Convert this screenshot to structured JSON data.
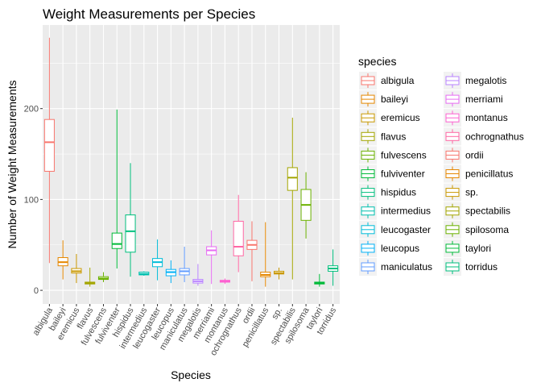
{
  "chart_data": {
    "type": "box",
    "title": "Weight Measurements per Species",
    "xlabel": "Species",
    "ylabel": "Number of Weight Measurements",
    "ylim": [
      -15,
      292
    ],
    "yticks": [
      0,
      100,
      200
    ],
    "grid": true,
    "legend": {
      "title": "species",
      "position": "right",
      "columns": 2
    },
    "series": [
      {
        "name": "albigula",
        "color": "#F8766D",
        "min": 30,
        "q1": 131,
        "median": 163,
        "q3": 188,
        "max": 278
      },
      {
        "name": "baileyi",
        "color": "#E58700",
        "min": 12,
        "q1": 27,
        "median": 31,
        "q3": 36,
        "max": 55
      },
      {
        "name": "eremicus",
        "color": "#C99800",
        "min": 8,
        "q1": 19,
        "median": 21,
        "q3": 24,
        "max": 40
      },
      {
        "name": "flavus",
        "color": "#A3A500",
        "min": 4,
        "q1": 7,
        "median": 8,
        "q3": 9,
        "max": 25
      },
      {
        "name": "fulvescens",
        "color": "#6BB100",
        "min": 9,
        "q1": 12,
        "median": 13,
        "q3": 15,
        "max": 20
      },
      {
        "name": "fulviventer",
        "color": "#00BA38",
        "min": 24,
        "q1": 46,
        "median": 51,
        "q3": 63,
        "max": 199
      },
      {
        "name": "hispidus",
        "color": "#00BF7D",
        "min": 15,
        "q1": 42,
        "median": 65,
        "q3": 83,
        "max": 140
      },
      {
        "name": "intermedius",
        "color": "#00C0AF",
        "min": 16,
        "q1": 17,
        "median": 18,
        "q3": 20,
        "max": 21
      },
      {
        "name": "leucogaster",
        "color": "#00BCD8",
        "min": 11,
        "q1": 26,
        "median": 31,
        "q3": 35,
        "max": 56
      },
      {
        "name": "leucopus",
        "color": "#00B0F6",
        "min": 8,
        "q1": 16,
        "median": 20,
        "q3": 23,
        "max": 33
      },
      {
        "name": "maniculatus",
        "color": "#619CFF",
        "min": 9,
        "q1": 17,
        "median": 21,
        "q3": 24,
        "max": 48
      },
      {
        "name": "megalotis",
        "color": "#B983FF",
        "min": 5,
        "q1": 8,
        "median": 10,
        "q3": 12,
        "max": 29
      },
      {
        "name": "merriami",
        "color": "#E76BF3",
        "min": 7,
        "q1": 39,
        "median": 44,
        "q3": 48,
        "max": 66
      },
      {
        "name": "montanus",
        "color": "#FD61D1",
        "min": 7,
        "q1": 9,
        "median": 10,
        "q3": 11,
        "max": 13
      },
      {
        "name": "ochrognathus",
        "color": "#FF67A4",
        "min": 20,
        "q1": 38,
        "median": 48,
        "q3": 76,
        "max": 105
      },
      {
        "name": "ordii",
        "color": "#F8766D",
        "min": 10,
        "q1": 45,
        "median": 50,
        "q3": 55,
        "max": 76
      },
      {
        "name": "penicillatus",
        "color": "#E58700",
        "min": 4,
        "q1": 15,
        "median": 17,
        "q3": 20,
        "max": 75
      },
      {
        "name": "sp.",
        "color": "#C99800",
        "min": 12,
        "q1": 18,
        "median": 19,
        "q3": 21,
        "max": 25
      },
      {
        "name": "spectabilis",
        "color": "#A3A500",
        "min": 12,
        "q1": 110,
        "median": 124,
        "q3": 135,
        "max": 190
      },
      {
        "name": "spilosoma",
        "color": "#6BB100",
        "min": 57,
        "q1": 77,
        "median": 94,
        "q3": 111,
        "max": 130
      },
      {
        "name": "taylori",
        "color": "#00BA38",
        "min": 4,
        "q1": 7,
        "median": 8,
        "q3": 9,
        "max": 18
      },
      {
        "name": "torridus",
        "color": "#00BF7D",
        "min": 5,
        "q1": 21,
        "median": 24,
        "q3": 27,
        "max": 45
      }
    ]
  }
}
